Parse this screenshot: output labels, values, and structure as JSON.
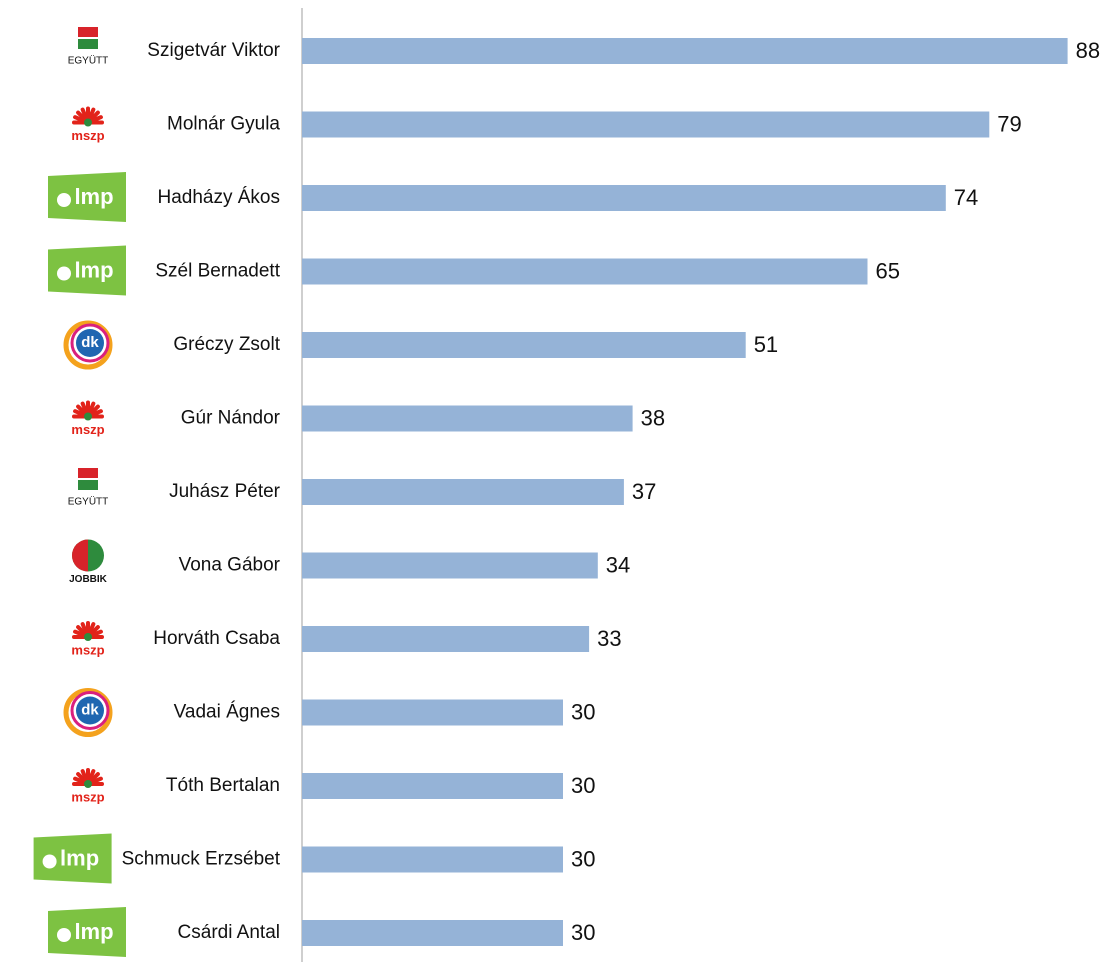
{
  "chart_data": {
    "type": "bar",
    "orientation": "horizontal",
    "color": "#95b3d7",
    "categories": [
      "Szigetvár Viktor",
      "Molnár Gyula",
      "Hadházy Ákos",
      "Szél Bernadett",
      "Gréczy Zsolt",
      "Gúr Nándor",
      "Juhász Péter",
      "Vona Gábor",
      "Horváth Csaba",
      "Vadai Ágnes",
      "Tóth Bertalan",
      "Schmuck Erzsébet",
      "Csárdi Antal"
    ],
    "parties": [
      "EGYÜTT",
      "mszp",
      "lmp",
      "lmp",
      "dk",
      "mszp",
      "EGYÜTT",
      "JOBBIK",
      "mszp",
      "dk",
      "mszp",
      "lmp",
      "lmp"
    ],
    "values": [
      88,
      79,
      74,
      65,
      51,
      38,
      37,
      34,
      33,
      30,
      30,
      30,
      30
    ]
  }
}
